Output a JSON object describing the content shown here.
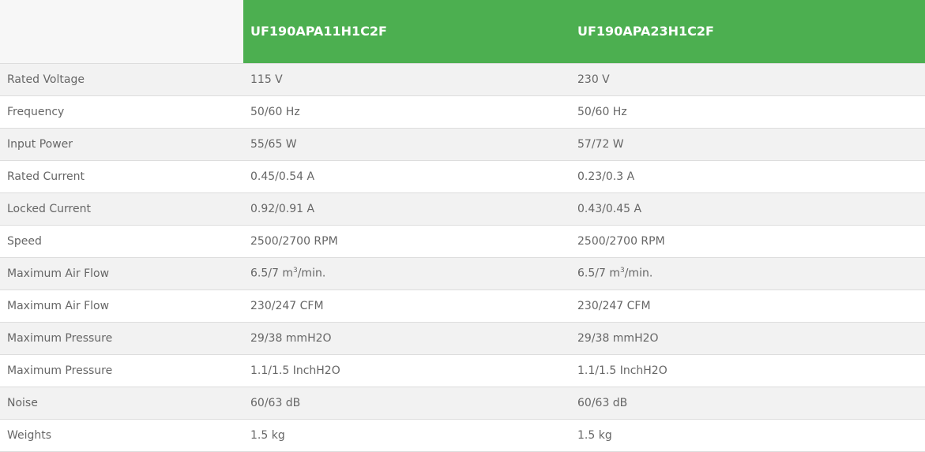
{
  "header": {
    "models": [
      "UF190APA11H1C2F",
      "UF190APA23H1C2F"
    ],
    "accent_color": "#4caf50"
  },
  "rows": [
    {
      "label": "Rated Voltage",
      "v1": "115 V",
      "v2": "230 V"
    },
    {
      "label": "Frequency",
      "v1": "50/60 Hz",
      "v2": "50/60 Hz"
    },
    {
      "label": "Input Power",
      "v1": "55/65 W",
      "v2": "57/72 W"
    },
    {
      "label": "Rated Current",
      "v1": "0.45/0.54 A",
      "v2": "0.23/0.3 A"
    },
    {
      "label": "Locked Current",
      "v1": "0.92/0.91 A",
      "v2": "0.43/0.45 A"
    },
    {
      "label": "Speed",
      "v1": "2500/2700 RPM",
      "v2": "2500/2700 RPM"
    },
    {
      "label": "Maximum Air Flow",
      "v1": "6.5/7 m",
      "v1_sup": "3",
      "v1_tail": "/min.",
      "v2": "6.5/7 m",
      "v2_sup": "3",
      "v2_tail": "/min."
    },
    {
      "label": "Maximum Air Flow",
      "v1": "230/247 CFM",
      "v2": "230/247 CFM"
    },
    {
      "label": "Maximum Pressure",
      "v1": "29/38 mmH2O",
      "v2": "29/38 mmH2O"
    },
    {
      "label": "Maximum Pressure",
      "v1": "1.1/1.5 InchH2O",
      "v2": "1.1/1.5 InchH2O"
    },
    {
      "label": "Noise",
      "v1": "60/63 dB",
      "v2": "60/63 dB"
    },
    {
      "label": "Weights",
      "v1": "1.5 kg",
      "v2": "1.5 kg"
    }
  ]
}
